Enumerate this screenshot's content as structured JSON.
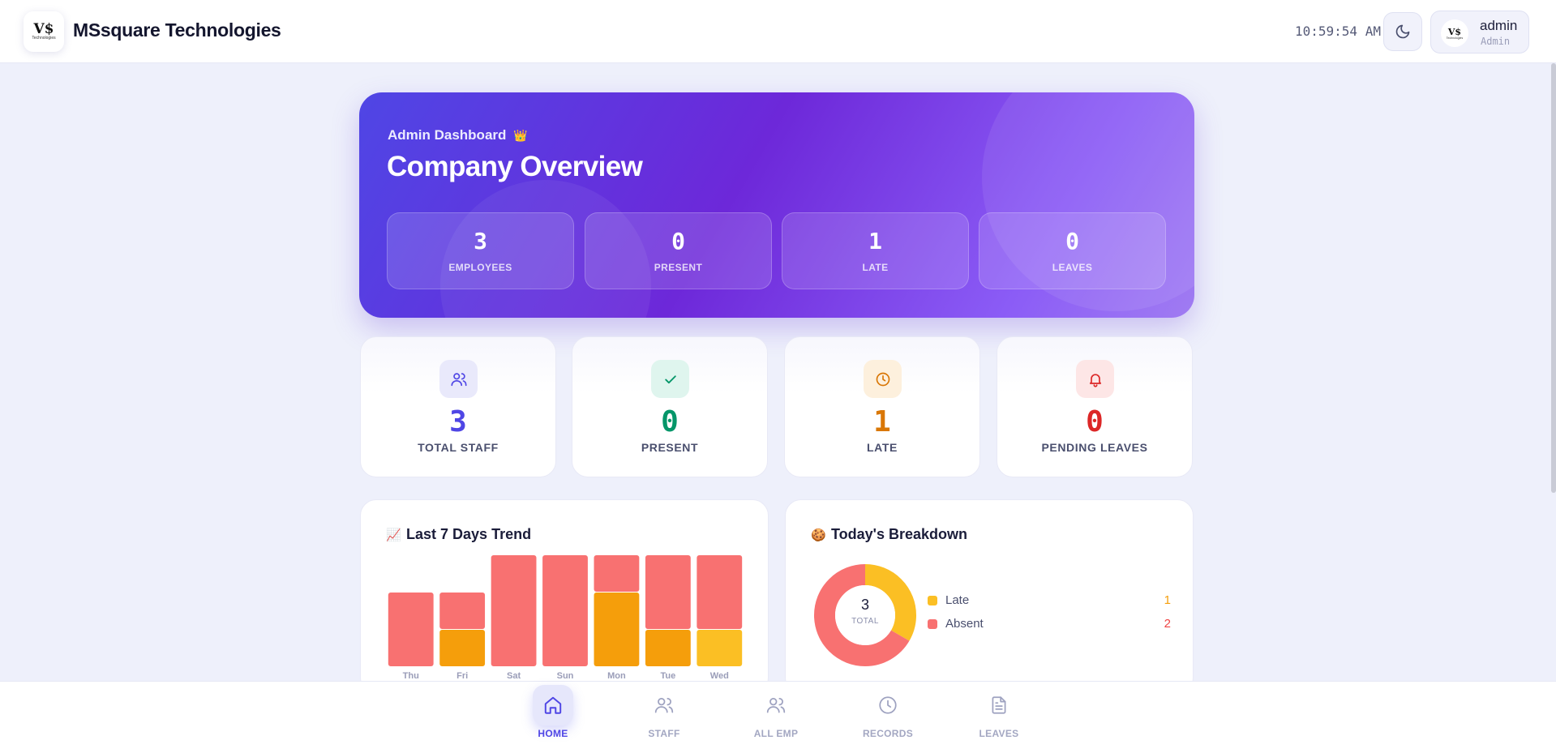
{
  "app": {
    "brand": "MSsquare Technologies",
    "logo_mark": "V$",
    "logo_sub": "Technologies",
    "clock": "10:59:54 AM",
    "theme_icon": "moon-icon",
    "user": {
      "name": "admin",
      "role": "Admin"
    }
  },
  "hero": {
    "label": "Admin Dashboard",
    "label_icon": "👑",
    "title": "Company Overview",
    "stats": [
      {
        "value": "3",
        "label": "EMPLOYEES"
      },
      {
        "value": "0",
        "label": "PRESENT"
      },
      {
        "value": "1",
        "label": "LATE"
      },
      {
        "value": "0",
        "label": "LEAVES"
      }
    ]
  },
  "cards": [
    {
      "value": "3",
      "label": "TOTAL STAFF",
      "icon": "users-icon",
      "color": "#4f46e5",
      "bg": "#e9e9fb"
    },
    {
      "value": "0",
      "label": "PRESENT",
      "icon": "check-icon",
      "color": "#059669",
      "bg": "#dff5ee"
    },
    {
      "value": "1",
      "label": "LATE",
      "icon": "clock-icon",
      "color": "#d97706",
      "bg": "#fdf0dd"
    },
    {
      "value": "0",
      "label": "PENDING LEAVES",
      "icon": "bell-icon",
      "color": "#dc2626",
      "bg": "#fde6e6"
    }
  ],
  "trend": {
    "emoji": "📈",
    "title": "Last 7 Days Trend"
  },
  "breakdown": {
    "emoji": "🍪",
    "title": "Today's Breakdown",
    "total": "3",
    "total_label": "TOTAL",
    "items": [
      {
        "name": "Late",
        "value": "1",
        "color": "#fbbf24"
      },
      {
        "name": "Absent",
        "value": "2",
        "color": "#f87171"
      }
    ]
  },
  "nav": [
    {
      "label": "HOME",
      "icon": "home-icon",
      "active": true
    },
    {
      "label": "STAFF",
      "icon": "users-icon",
      "active": false
    },
    {
      "label": "ALL EMP",
      "icon": "users-icon",
      "active": false
    },
    {
      "label": "RECORDS",
      "icon": "clock-icon",
      "active": false
    },
    {
      "label": "LEAVES",
      "icon": "document-icon",
      "active": false
    }
  ],
  "chart_data": {
    "type": "bar",
    "stacked": true,
    "categories": [
      "Thu",
      "Fri",
      "Sat",
      "Sun",
      "Mon",
      "Tue",
      "Wed"
    ],
    "series": [
      {
        "values": [
          0,
          1,
          0,
          0,
          2,
          1,
          1
        ],
        "color": "#f59e0b"
      },
      {
        "values": [
          2,
          1,
          3,
          3,
          1,
          2,
          2
        ],
        "color": "#f87171"
      }
    ],
    "highlight": {
      "index": 6,
      "color": "#fbbf24"
    },
    "ylim": [
      0,
      3
    ]
  }
}
